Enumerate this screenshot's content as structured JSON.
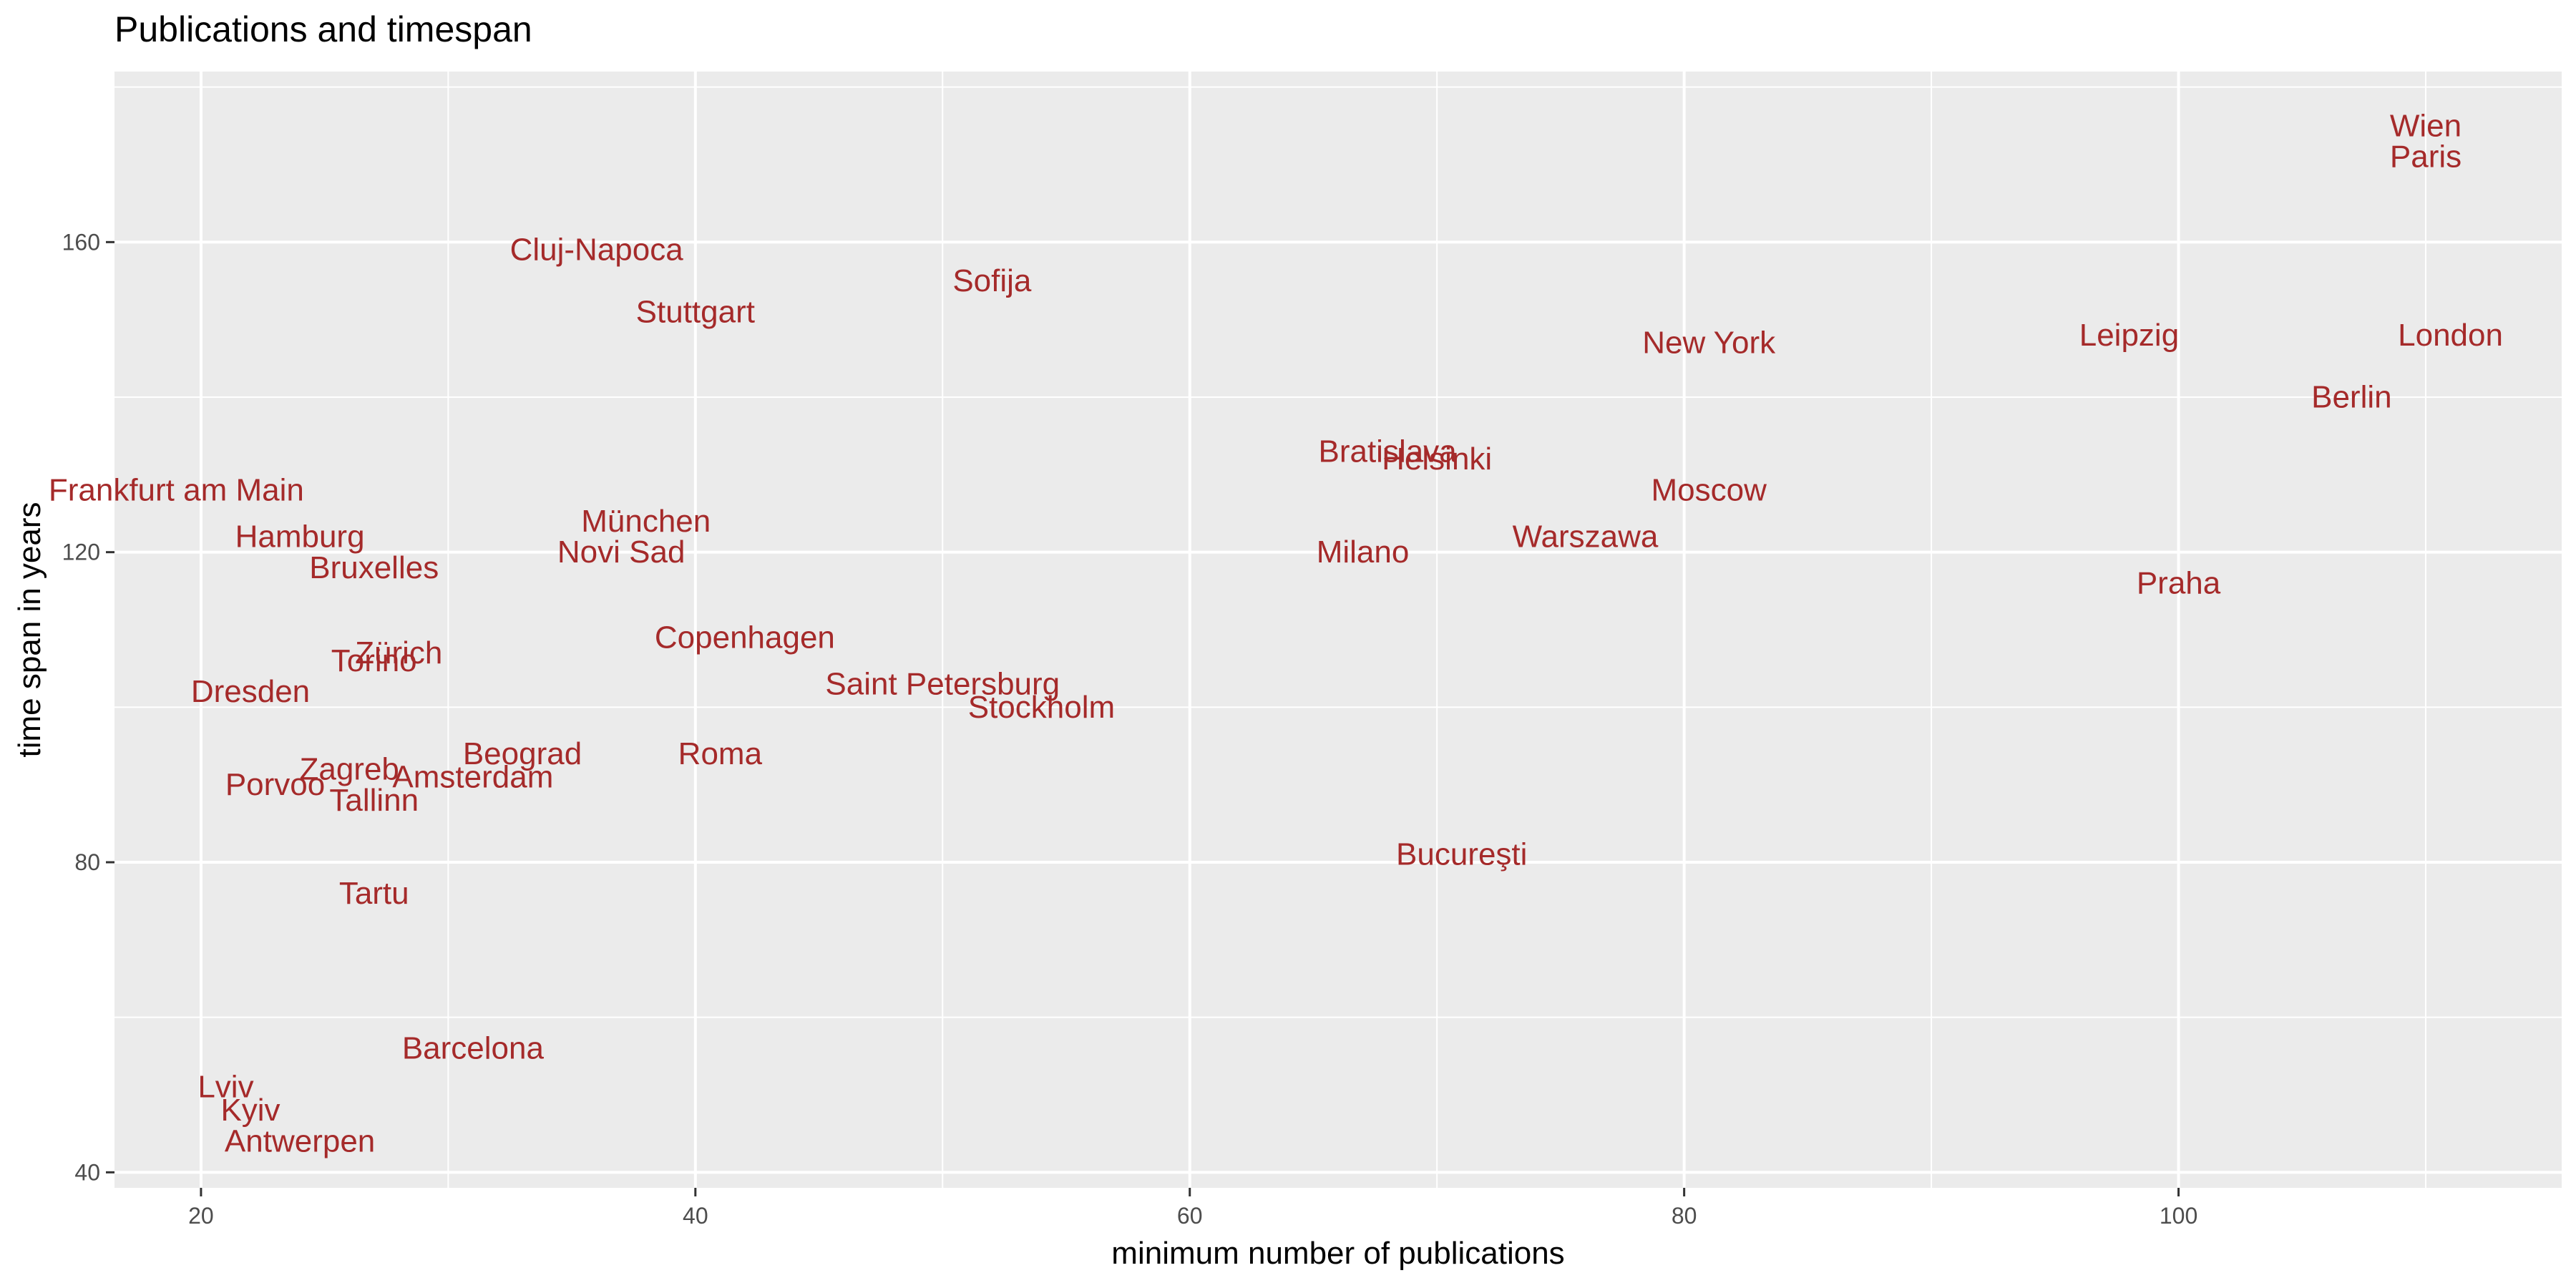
{
  "chart_data": {
    "type": "scatter",
    "title": "Publications and timespan",
    "xlabel": "minimum number of publications",
    "ylabel": "time span in years",
    "xlim": [
      16.5,
      115.5
    ],
    "ylim": [
      38,
      182
    ],
    "x_ticks": [
      20,
      40,
      60,
      80,
      100
    ],
    "y_ticks": [
      40,
      80,
      120,
      160
    ],
    "grid": true,
    "legend": "none",
    "label_color": "#a52a2a",
    "panel_color": "#ebebeb",
    "points": [
      {
        "label": "Wien",
        "x": 110,
        "y": 175
      },
      {
        "label": "Paris",
        "x": 110,
        "y": 171
      },
      {
        "label": "London",
        "x": 111,
        "y": 148
      },
      {
        "label": "Berlin",
        "x": 107,
        "y": 140
      },
      {
        "label": "Leipzig",
        "x": 98,
        "y": 148
      },
      {
        "label": "Praha",
        "x": 100,
        "y": 116
      },
      {
        "label": "New York",
        "x": 81,
        "y": 147
      },
      {
        "label": "Moscow",
        "x": 81,
        "y": 128
      },
      {
        "label": "Warszawa",
        "x": 76,
        "y": 122
      },
      {
        "label": "Bratislava",
        "x": 68,
        "y": 133
      },
      {
        "label": "Helsinki",
        "x": 70,
        "y": 132
      },
      {
        "label": "Milano",
        "x": 67,
        "y": 120
      },
      {
        "label": "Bucureşti",
        "x": 71,
        "y": 81
      },
      {
        "label": "Sofija",
        "x": 52,
        "y": 155
      },
      {
        "label": "Saint Petersburg",
        "x": 50,
        "y": 103
      },
      {
        "label": "Stockholm",
        "x": 54,
        "y": 100
      },
      {
        "label": "Cluj-Napoca",
        "x": 36,
        "y": 159
      },
      {
        "label": "Stuttgart",
        "x": 40,
        "y": 151
      },
      {
        "label": "München",
        "x": 38,
        "y": 124
      },
      {
        "label": "Novi Sad",
        "x": 37,
        "y": 120
      },
      {
        "label": "Copenhagen",
        "x": 42,
        "y": 109
      },
      {
        "label": "Roma",
        "x": 41,
        "y": 94
      },
      {
        "label": "Beograd",
        "x": 33,
        "y": 94
      },
      {
        "label": "Amsterdam",
        "x": 31,
        "y": 91
      },
      {
        "label": "Frankfurt am Main",
        "x": 19,
        "y": 128
      },
      {
        "label": "Hamburg",
        "x": 24,
        "y": 122
      },
      {
        "label": "Bruxelles",
        "x": 27,
        "y": 118
      },
      {
        "label": "Zürich",
        "x": 28,
        "y": 107
      },
      {
        "label": "Torino",
        "x": 27,
        "y": 106
      },
      {
        "label": "Dresden",
        "x": 22,
        "y": 102
      },
      {
        "label": "Zagreb",
        "x": 26,
        "y": 92
      },
      {
        "label": "Porvoo",
        "x": 23,
        "y": 90
      },
      {
        "label": "Tallinn",
        "x": 27,
        "y": 88
      },
      {
        "label": "Tartu",
        "x": 27,
        "y": 76
      },
      {
        "label": "Barcelona",
        "x": 31,
        "y": 56
      },
      {
        "label": "Lviv",
        "x": 21,
        "y": 51
      },
      {
        "label": "Kyiv",
        "x": 22,
        "y": 48
      },
      {
        "label": "Antwerpen",
        "x": 24,
        "y": 44
      }
    ]
  }
}
